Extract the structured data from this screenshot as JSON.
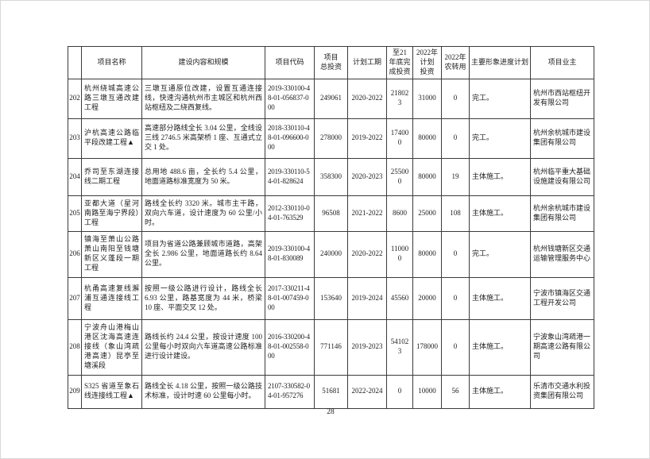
{
  "page_number": "28",
  "table": {
    "columns": [
      {
        "key": "id",
        "label": ""
      },
      {
        "key": "name",
        "label": "项目名称"
      },
      {
        "key": "content",
        "label": "建设内容和规模"
      },
      {
        "key": "code",
        "label": "项目代码"
      },
      {
        "key": "total",
        "label": "项目\n总投资"
      },
      {
        "key": "period",
        "label": "计划工期"
      },
      {
        "key": "done21",
        "label": "至21\n年底完\n成投资"
      },
      {
        "key": "plan22",
        "label": "2022年\n计划\n投资"
      },
      {
        "key": "land22",
        "label": "2022年\n农转用"
      },
      {
        "key": "progress",
        "label": "主要形象进度计划"
      },
      {
        "key": "owner",
        "label": "项目业主"
      }
    ],
    "rows": [
      {
        "id": "202",
        "name": "杭州绕城高速公路三墩互通改建工程",
        "content": "三墩互通原位改建，设置互通连接线，快速沟通杭州市主城区和杭州西站枢纽及二绕西复线。",
        "code": "2019-330100-48-01-056837-000",
        "total": "249061",
        "period": "2020-2022",
        "done21": "218023",
        "plan22": "31000",
        "land22": "0",
        "progress": "完工。",
        "owner": "杭州市西站枢纽开发有限公司"
      },
      {
        "id": "203",
        "name": "沪杭高速公路临平段改建工程▲",
        "content": "高速部分路线全长 3.04 公里，全线设三线 2746.5 米高架桥 1 座、互通式立交 1 处。",
        "code": "2018-330110-48-01-096600-000",
        "total": "278000",
        "period": "2019-2022",
        "done21": "174000",
        "plan22": "80000",
        "land22": "0",
        "progress": "完工。",
        "owner": "杭州余杭城市建设集团有限公司"
      },
      {
        "id": "204",
        "name": "乔司至东湖连接线二期工程",
        "content": "总用地 488.6 亩，全长约 5.4 公里，地面道路标准宽度为 50 米。",
        "code": "2019-330110-54-01-828624",
        "total": "358300",
        "period": "2020-2023",
        "done21": "255000",
        "plan22": "80000",
        "land22": "19",
        "progress": "主体施工。",
        "owner": "杭州临平重大基础设施建设有限公司"
      },
      {
        "id": "205",
        "name": "亚都大道（星河南路至海宁界段）工程",
        "content": "路线全长约 3320 米。城市主干路，双向六车道，设计速度为 60 公里/小时。",
        "code": "2012-330110-04-01-763529",
        "total": "96508",
        "period": "2021-2022",
        "done21": "8600",
        "plan22": "25000",
        "land22": "108",
        "progress": "主体施工。",
        "owner": "杭州余杭城市建设集团有限公司"
      },
      {
        "id": "206",
        "name": "镇海至萧山公路萧山南阳至钱塘新区义蓬段一期工程",
        "content": "项目为省道公路兼顾城市道路，高架全长 2.986 公里，地面道路长约 8.64 公里。",
        "code": "2019-330100-48-01-830089",
        "total": "240000",
        "period": "2020-2022",
        "done21": "110000",
        "plan22": "80000",
        "land22": "0",
        "progress": "完工。",
        "owner": "杭州钱塘新区交通运输管理服务中心"
      },
      {
        "id": "207",
        "name": "杭甬高速复线澥浦互通连接线工程",
        "content": "按照一级公路进行设计，路线全长 6.93 公里，路基宽度为 44 米，桥梁 10 座、平面交叉 12 处。",
        "code": "2017-330211-48-01-007459-000",
        "total": "153640",
        "period": "2019-2024",
        "done21": "45560",
        "plan22": "20000",
        "land22": "0",
        "progress": "主体施工。",
        "owner": "宁波市镇海区交通工程开发公司"
      },
      {
        "id": "208",
        "name": "宁波舟山港梅山港区沈海高速连接线（象山湾疏港高速）昆亭至塘溪段",
        "content": "路线长约 24.4 公里，按设计速度 100 公里每小时双向六车道高速公路标准进行设计建设。",
        "code": "2016-330200-48-01-002558-000",
        "total": "771146",
        "period": "2019-2023",
        "done21": "541023",
        "plan22": "178000",
        "land22": "0",
        "progress": "主体施工。",
        "owner": "宁波象山湾疏港一期高速公路有限公司"
      },
      {
        "id": "209",
        "name": "S325 省道至象石线连接线工程▲",
        "content": "路线全长 4.18 公里，按照一级公路技术标准，设计时速 60 公里每小时。",
        "code": "2107-330582-04-01-957276",
        "total": "51681",
        "period": "2022-2024",
        "done21": "0",
        "plan22": "10000",
        "land22": "56",
        "progress": "主体施工。",
        "owner": "乐清市交通水利投资集团有限公司"
      }
    ]
  }
}
